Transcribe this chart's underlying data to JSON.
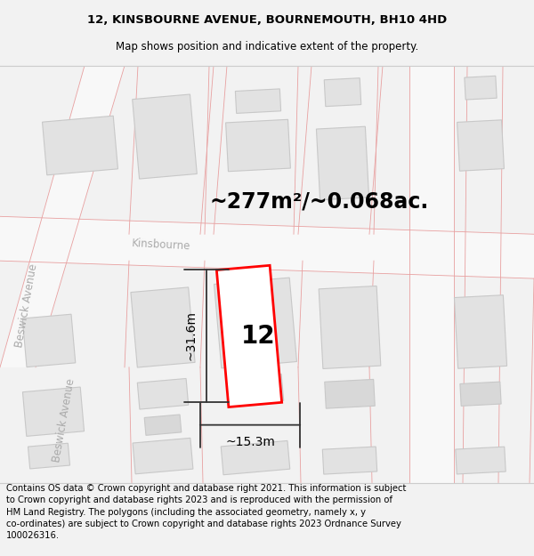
{
  "title_line1": "12, KINSBOURNE AVENUE, BOURNEMOUTH, BH10 4HD",
  "title_line2": "Map shows position and indicative extent of the property.",
  "area_text": "~277m²/~0.068ac.",
  "label_number": "12",
  "dim_width": "~15.3m",
  "dim_height": "~31.6m",
  "footer_text": "Contains OS data © Crown copyright and database right 2021. This information is subject to Crown copyright and database rights 2023 and is reproduced with the permission of HM Land Registry. The polygons (including the associated geometry, namely x, y co-ordinates) are subject to Crown copyright and database rights 2023 Ordnance Survey 100026316.",
  "bg_color": "#f2f2f2",
  "map_bg": "#ffffff",
  "building_fill": "#e2e2e2",
  "building_edge": "#c8c8c8",
  "highlight_color": "#ff0000",
  "pink_line": "#e8a0a0",
  "street_label1": "Beswick Avenue",
  "street_label2": "Kinsbourne",
  "title_fontsize": 9.5,
  "subtitle_fontsize": 8.5,
  "area_fontsize": 17,
  "label_fontsize": 20,
  "dim_fontsize": 10,
  "footer_fontsize": 7.2,
  "street_fontsize": 8.5
}
